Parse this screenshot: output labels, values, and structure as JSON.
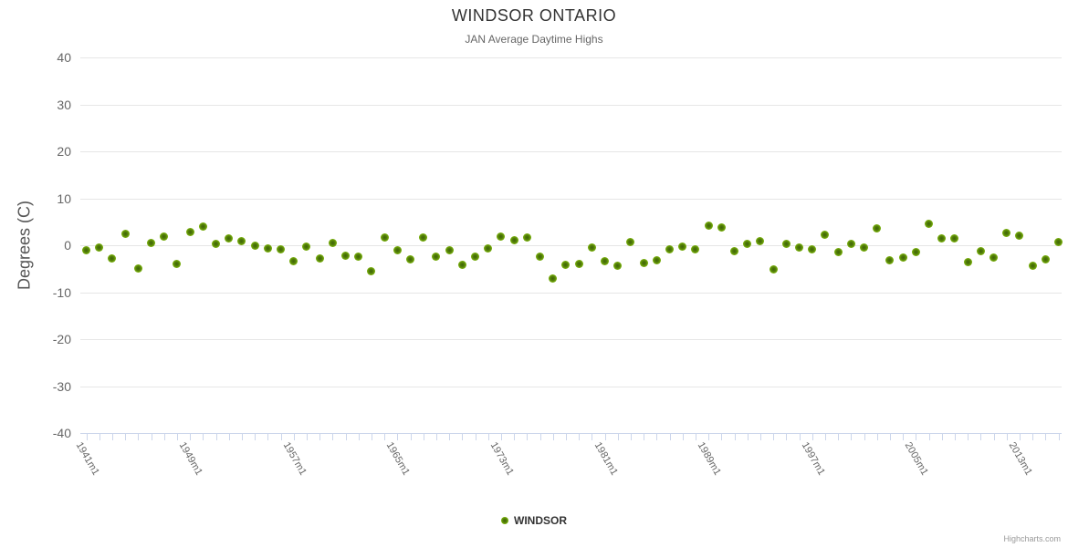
{
  "title": "WINDSOR ONTARIO",
  "subtitle": "JAN Average Daytime Highs",
  "legend": {
    "label": "WINDSOR"
  },
  "credits": "Highcharts.com",
  "colors": {
    "title": "#333333",
    "subtitle": "#666666",
    "axis_labels": "#666666",
    "gridline": "#e6e6e6",
    "axis_line": "#ccd6eb",
    "marker_outer": "#7db40e",
    "marker_inner": "#3e6307",
    "legend_text": "#333333",
    "credits_text": "#999999"
  },
  "chart_data": {
    "type": "scatter",
    "title": "WINDSOR ONTARIO",
    "subtitle": "JAN Average Daytime Highs",
    "ylabel": "Degrees (C)",
    "ylim": [
      -40,
      40
    ],
    "y_ticks": [
      40,
      30,
      20,
      10,
      0,
      -10,
      -20,
      -30,
      -40
    ],
    "grid": true,
    "legend_position": "bottom-center",
    "x_start_year": 1941,
    "x_end_year": 2016,
    "x_tick_interval_years": 1,
    "x_label_every_n_ticks": 8,
    "visible_x_labels": [
      "1941m1",
      "1949m1",
      "1957m1",
      "1965m1",
      "1973m1",
      "1981m1",
      "1989m1",
      "1997m1",
      "2005m1",
      "2013m1"
    ],
    "series": [
      {
        "name": "WINDSOR",
        "color": "#7db40e",
        "values": [
          -1.0,
          -0.5,
          -2.8,
          2.5,
          -5.0,
          0.5,
          1.8,
          -4.0,
          2.8,
          4.0,
          0.2,
          1.5,
          0.9,
          0.0,
          -0.7,
          -0.9,
          -3.4,
          -0.3,
          -2.8,
          0.5,
          -2.2,
          -2.4,
          -5.6,
          1.7,
          -1.0,
          -3.0,
          1.7,
          -2.5,
          -1.0,
          -4.1,
          -2.5,
          -0.6,
          1.9,
          1.0,
          1.6,
          -2.4,
          -7.0,
          -4.2,
          -4.0,
          -0.5,
          -3.4,
          -4.3,
          0.6,
          -3.7,
          -3.2,
          -0.8,
          -0.3,
          -0.9,
          4.2,
          3.7,
          -1.3,
          0.3,
          0.9,
          -5.1,
          0.3,
          -0.4,
          -0.9,
          2.3,
          -1.4,
          0.2,
          -0.4,
          3.6,
          -3.3,
          -2.7,
          -1.4,
          4.5,
          1.5,
          1.5,
          -3.6,
          -1.2,
          -2.7,
          2.7,
          2.0,
          -4.3,
          -3.0,
          0.6
        ]
      }
    ]
  }
}
